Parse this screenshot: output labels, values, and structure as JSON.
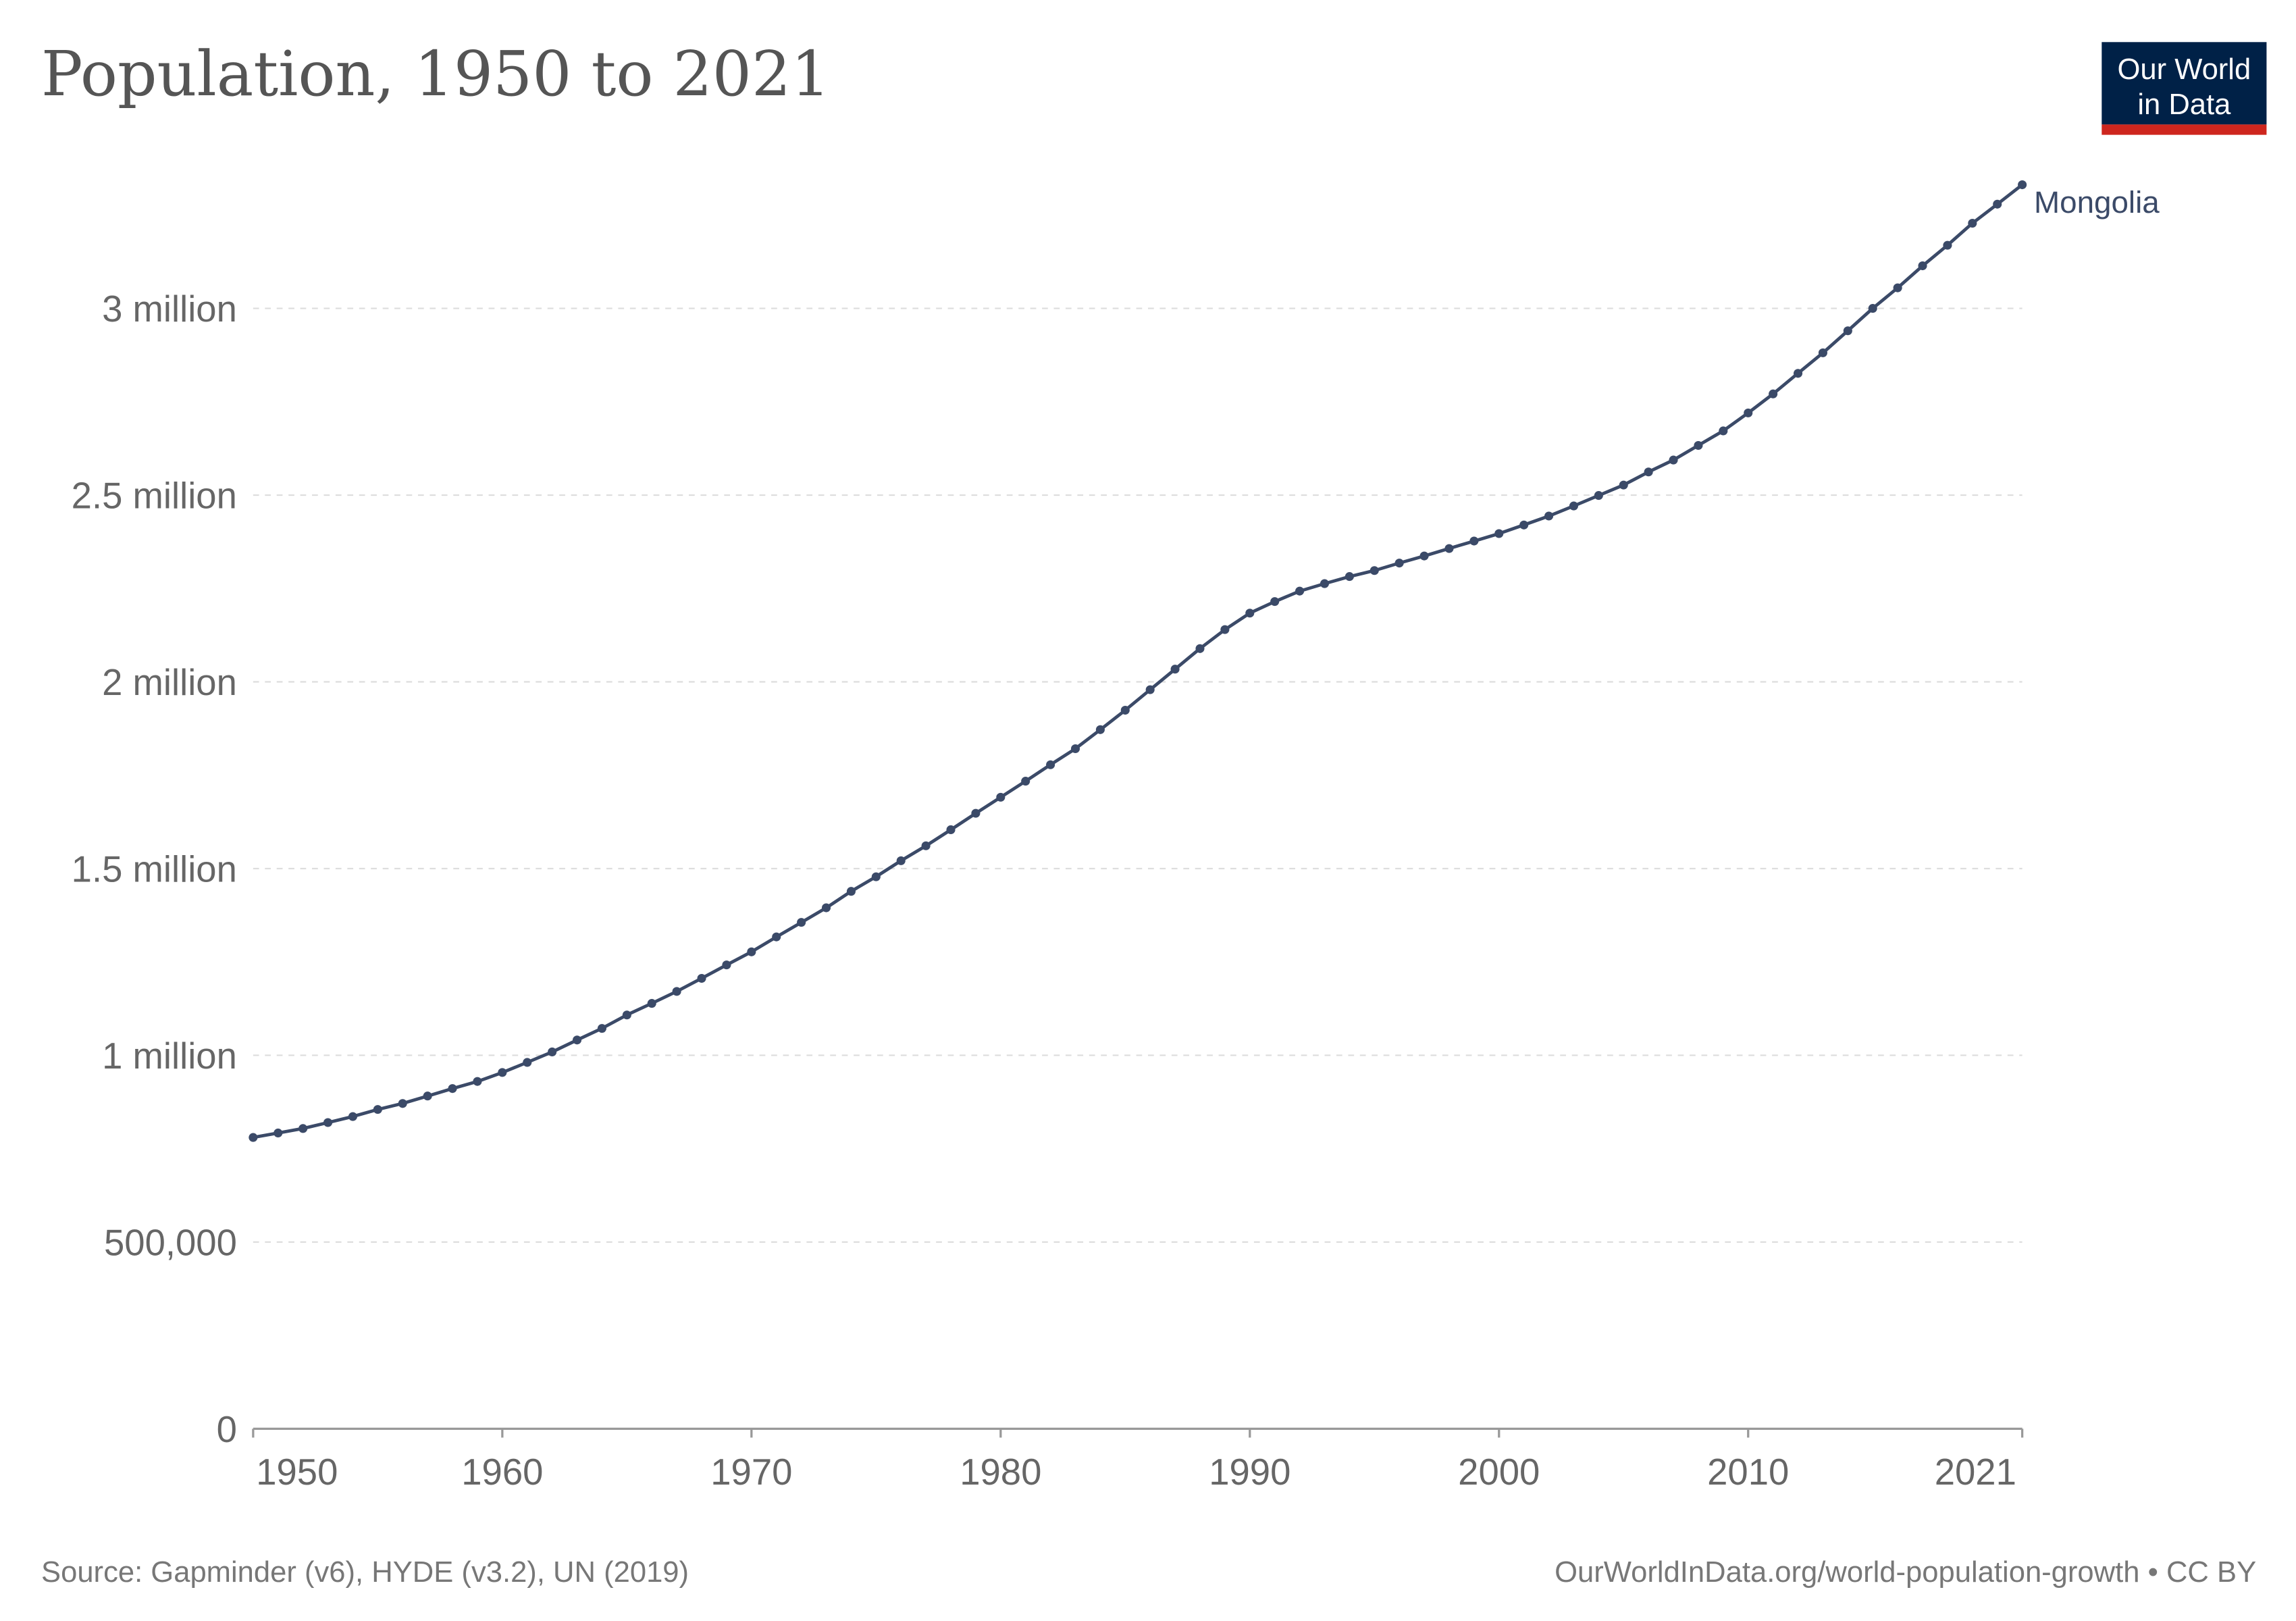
{
  "chart_data": {
    "type": "line",
    "title": "Population, 1950 to 2021",
    "xlabel": "",
    "ylabel": "",
    "xlim": [
      1950,
      2021
    ],
    "ylim": [
      0,
      3331000
    ],
    "grid": "horizontal dashed",
    "x_ticks": [
      1950,
      1960,
      1970,
      1980,
      1990,
      2000,
      2010,
      2021
    ],
    "y_ticks": [
      {
        "value": 0,
        "label": "0"
      },
      {
        "value": 500000,
        "label": "500,000"
      },
      {
        "value": 1000000,
        "label": "1 million"
      },
      {
        "value": 1500000,
        "label": "1.5 million"
      },
      {
        "value": 2000000,
        "label": "2 million"
      },
      {
        "value": 2500000,
        "label": "2.5 million"
      },
      {
        "value": 3000000,
        "label": "3 million"
      }
    ],
    "series": [
      {
        "name": "Mongolia",
        "color": "#3b4a68",
        "x": [
          1950,
          1951,
          1952,
          1953,
          1954,
          1955,
          1956,
          1957,
          1958,
          1959,
          1960,
          1961,
          1962,
          1963,
          1964,
          1965,
          1966,
          1967,
          1968,
          1969,
          1970,
          1971,
          1972,
          1973,
          1974,
          1975,
          1976,
          1977,
          1978,
          1979,
          1980,
          1981,
          1982,
          1983,
          1984,
          1985,
          1986,
          1987,
          1988,
          1989,
          1990,
          1991,
          1992,
          1993,
          1994,
          1995,
          1996,
          1997,
          1998,
          1999,
          2000,
          2001,
          2002,
          2003,
          2004,
          2005,
          2006,
          2007,
          2008,
          2009,
          2010,
          2011,
          2012,
          2013,
          2014,
          2015,
          2016,
          2017,
          2018,
          2019,
          2020,
          2021
        ],
        "values": [
          780000,
          792000,
          804000,
          820000,
          836000,
          855000,
          871000,
          891000,
          911000,
          930000,
          954000,
          981000,
          1009000,
          1041000,
          1072000,
          1108000,
          1139000,
          1171000,
          1206000,
          1242000,
          1277000,
          1317000,
          1356000,
          1395000,
          1439000,
          1478000,
          1521000,
          1561000,
          1604000,
          1648000,
          1691000,
          1734000,
          1778000,
          1821000,
          1872000,
          1924000,
          1979000,
          2034000,
          2089000,
          2140000,
          2184000,
          2215000,
          2243000,
          2263000,
          2282000,
          2298000,
          2318000,
          2337000,
          2357000,
          2377000,
          2397000,
          2420000,
          2444000,
          2471000,
          2499000,
          2527000,
          2562000,
          2594000,
          2633000,
          2672000,
          2720000,
          2771000,
          2826000,
          2881000,
          2940000,
          3000000,
          3055000,
          3114000,
          3169000,
          3228000,
          3279000,
          3331000
        ]
      }
    ]
  },
  "logo": {
    "line1": "Our World",
    "line2": "in Data",
    "bg": "#002147",
    "accent": "#ce261e"
  },
  "footer": {
    "source": "Source: Gapminder (v6), HYDE (v3.2), UN (2019)",
    "link": "OurWorldInData.org/world-population-growth • CC BY"
  },
  "colors": {
    "grid": "#dddddd",
    "axis": "#999999",
    "title": "#555555"
  }
}
